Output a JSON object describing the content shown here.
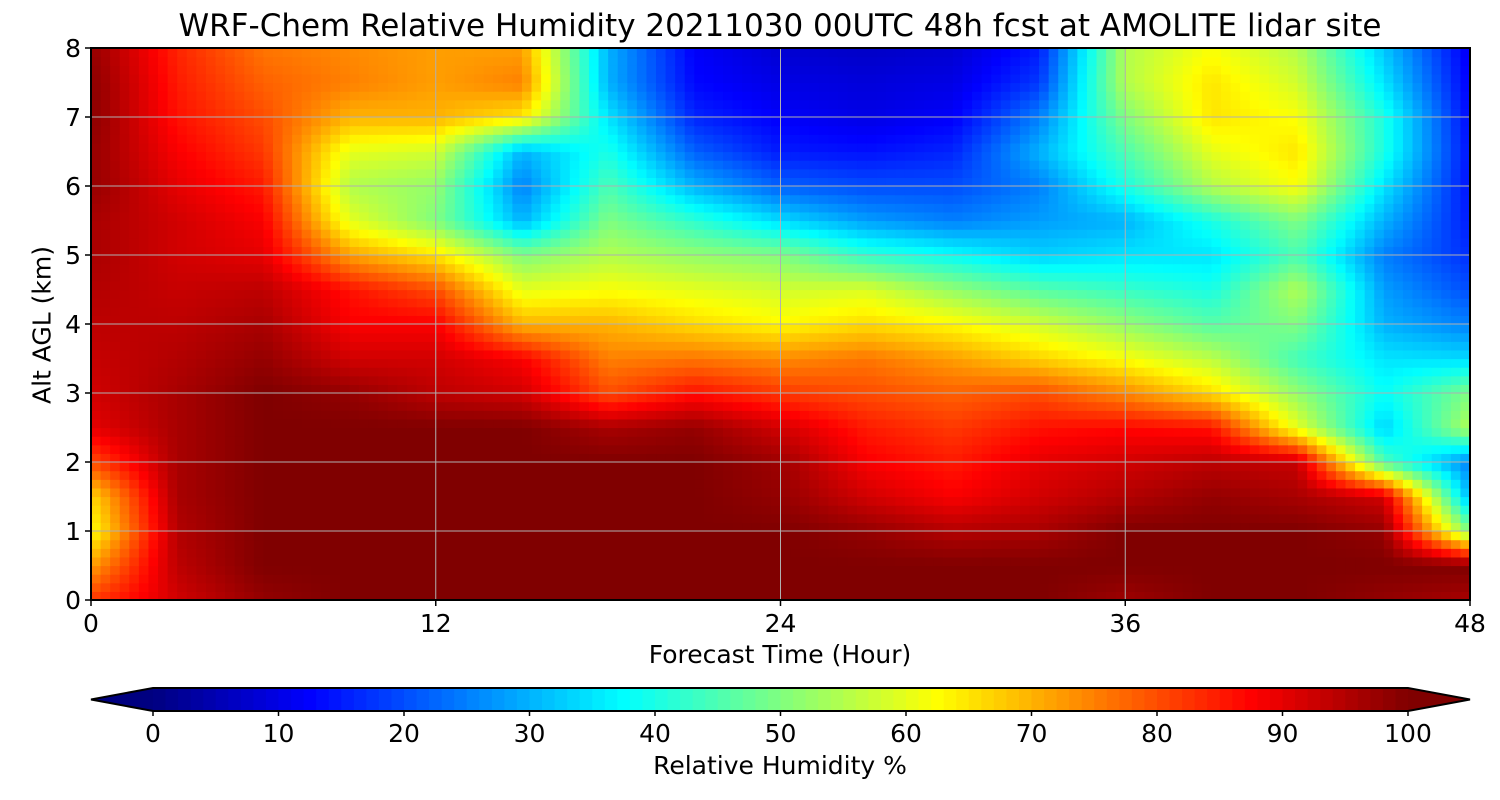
{
  "chart_data": {
    "type": "heatmap",
    "title": "WRF-Chem Relative Humidity 20211030 00UTC 48h fcst at AMOLITE lidar site",
    "xlabel": "Forecast Time (Hour)",
    "ylabel": "Alt AGL (km)",
    "xlim": [
      0,
      48
    ],
    "ylim": [
      0,
      8
    ],
    "x_ticks": [
      0,
      12,
      24,
      36,
      48
    ],
    "y_ticks": [
      0,
      1,
      2,
      3,
      4,
      5,
      6,
      7,
      8
    ],
    "grid": true,
    "colormap": "jet",
    "colorbar": {
      "label": "Relative Humidity %",
      "range": [
        0,
        100
      ],
      "ticks": [
        0,
        10,
        20,
        30,
        40,
        50,
        60,
        70,
        80,
        90,
        100
      ],
      "extend": "both",
      "orientation": "horizontal"
    },
    "x_hours": [
      0,
      3,
      6,
      9,
      12,
      15,
      18,
      21,
      24,
      27,
      30,
      33,
      36,
      39,
      42,
      45,
      48
    ],
    "y_km": [
      0,
      0.5,
      1,
      1.5,
      2,
      2.5,
      3,
      3.5,
      4,
      4.5,
      5,
      5.5,
      6,
      6.5,
      7,
      7.5,
      8
    ],
    "rh_percent": [
      [
        82,
        92,
        98,
        100,
        100,
        100,
        100,
        100,
        100,
        100,
        100,
        100,
        97,
        100,
        100,
        98,
        96
      ],
      [
        72,
        94,
        100,
        100,
        100,
        100,
        100,
        100,
        100,
        100,
        100,
        100,
        100,
        100,
        100,
        100,
        100
      ],
      [
        62,
        95,
        100,
        100,
        100,
        100,
        100,
        100,
        100,
        98,
        95,
        96,
        100,
        100,
        100,
        98,
        50
      ],
      [
        66,
        96,
        100,
        100,
        100,
        100,
        100,
        100,
        98,
        92,
        88,
        92,
        95,
        98,
        96,
        92,
        30
      ],
      [
        80,
        96,
        100,
        100,
        100,
        100,
        100,
        100,
        97,
        88,
        85,
        90,
        92,
        94,
        93,
        45,
        25
      ],
      [
        90,
        96,
        100,
        100,
        100,
        100,
        96,
        98,
        92,
        85,
        82,
        86,
        87,
        86,
        60,
        33,
        55
      ],
      [
        92,
        96,
        100,
        98,
        94,
        92,
        80,
        86,
        82,
        80,
        78,
        80,
        74,
        66,
        52,
        38,
        50
      ],
      [
        93,
        95,
        98,
        92,
        92,
        88,
        75,
        76,
        74,
        76,
        72,
        67,
        62,
        56,
        44,
        35,
        34
      ],
      [
        94,
        94,
        96,
        88,
        88,
        70,
        70,
        66,
        63,
        66,
        63,
        58,
        52,
        46,
        50,
        30,
        25
      ],
      [
        95,
        93,
        94,
        86,
        80,
        60,
        62,
        60,
        58,
        59,
        52,
        46,
        43,
        40,
        55,
        28,
        20
      ],
      [
        96,
        92,
        90,
        72,
        65,
        50,
        55,
        52,
        50,
        42,
        38,
        33,
        35,
        35,
        45,
        25,
        17
      ],
      [
        96,
        92,
        88,
        60,
        50,
        30,
        50,
        42,
        34,
        28,
        25,
        28,
        30,
        40,
        50,
        30,
        15
      ],
      [
        98,
        90,
        85,
        55,
        52,
        25,
        45,
        30,
        22,
        20,
        20,
        25,
        40,
        55,
        62,
        35,
        14
      ],
      [
        98,
        88,
        82,
        60,
        58,
        30,
        40,
        22,
        15,
        14,
        16,
        30,
        45,
        60,
        65,
        40,
        14
      ],
      [
        99,
        86,
        80,
        70,
        70,
        65,
        35,
        16,
        12,
        10,
        12,
        25,
        50,
        65,
        62,
        40,
        13
      ],
      [
        99,
        85,
        78,
        75,
        72,
        75,
        30,
        13,
        10,
        9,
        10,
        18,
        55,
        65,
        58,
        35,
        12
      ],
      [
        98,
        84,
        76,
        74,
        72,
        72,
        30,
        12,
        8,
        7,
        8,
        15,
        55,
        62,
        55,
        32,
        11
      ]
    ]
  }
}
